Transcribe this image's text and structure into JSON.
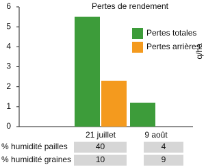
{
  "chart_data": {
    "type": "bar",
    "title": "Pertes de rendement",
    "y_label": "q/ha",
    "categories": [
      "21 juillet",
      "9 août"
    ],
    "series": [
      {
        "name": "Pertes totales",
        "color": "#3d9c3a",
        "values": [
          5.5,
          1.2
        ]
      },
      {
        "name": "Pertes arrières",
        "color": "#f49a1e",
        "values": [
          2.3,
          0
        ]
      }
    ],
    "ylim": [
      0,
      6
    ],
    "yticks": [
      0,
      1,
      2,
      3,
      4,
      5,
      6
    ]
  },
  "table": {
    "rows": [
      {
        "label": "% humidité pailles",
        "values": [
          40,
          4
        ]
      },
      {
        "label": "% humidité graines",
        "values": [
          10,
          9
        ]
      }
    ]
  }
}
